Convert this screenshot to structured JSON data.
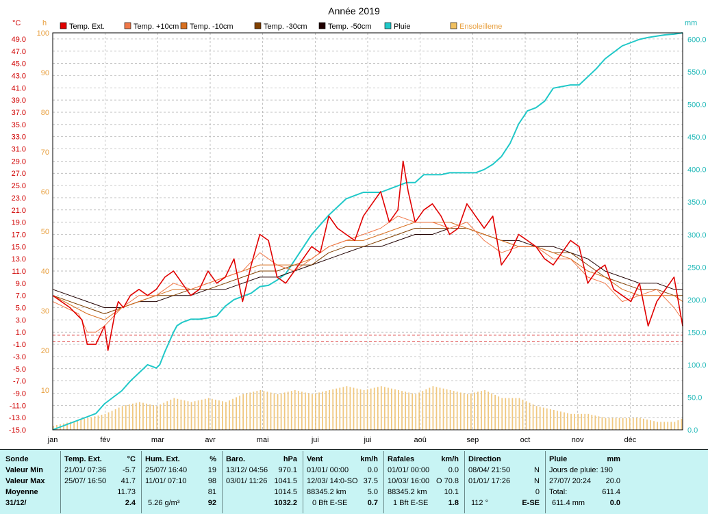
{
  "chart_data": {
    "type": "line",
    "title": "Année 2019",
    "x_months": [
      "jan",
      "fév",
      "mar",
      "avr",
      "mai",
      "jui",
      "jui",
      "aoû",
      "sep",
      "oct",
      "nov",
      "déc"
    ],
    "x_range_days": [
      0,
      365
    ],
    "axes": {
      "temp": {
        "unit": "°C",
        "min": -15,
        "max": 50,
        "ticks": [
          "49.0",
          "47.0",
          "45.0",
          "43.0",
          "41.0",
          "39.0",
          "37.0",
          "35.0",
          "33.0",
          "31.0",
          "29.0",
          "27.0",
          "25.0",
          "23.0",
          "21.0",
          "19.0",
          "17.0",
          "15.0",
          "13.0",
          "11.0",
          "9.0",
          "7.0",
          "5.0",
          "3.0",
          "1.0",
          "-1.0",
          "-3.0",
          "-5.0",
          "-7.0",
          "-9.0",
          "-11.0",
          "-13.0",
          "-15.0"
        ]
      },
      "sun": {
        "unit": "h",
        "min": 0,
        "max": 100,
        "ticks": [
          "100",
          "90",
          "80",
          "70",
          "60",
          "50",
          "40",
          "30",
          "20",
          "10"
        ]
      },
      "rain": {
        "unit": "mm",
        "min": 0,
        "max": 610,
        "ticks": [
          "600.0",
          "550.0",
          "500.0",
          "450.0",
          "400.0",
          "350.0",
          "300.0",
          "250.0",
          "200.0",
          "150.0",
          "100.0",
          "50.0",
          "0.0"
        ]
      }
    },
    "legend": [
      {
        "name": "Temp. Ext.",
        "color": "#e00000"
      },
      {
        "name": "Temp. +10cm",
        "color": "#f07848"
      },
      {
        "name": "Temp. -10cm",
        "color": "#d87020"
      },
      {
        "name": "Temp. -30cm",
        "color": "#804000"
      },
      {
        "name": "Temp. -50cm",
        "color": "#200000"
      },
      {
        "name": "Pluie",
        "color": "#20c8c8"
      },
      {
        "name": "Ensoleilleme",
        "color": "#f0c060"
      }
    ],
    "reference_lines": [
      -0.5,
      0.5
    ],
    "series": [
      {
        "name": "Temp. Ext.",
        "x": [
          0,
          10,
          17,
          20,
          25,
          30,
          32,
          36,
          38,
          41,
          45,
          50,
          55,
          60,
          65,
          70,
          75,
          80,
          85,
          90,
          95,
          100,
          105,
          110,
          115,
          120,
          125,
          130,
          135,
          140,
          145,
          150,
          155,
          160,
          165,
          170,
          175,
          180,
          185,
          190,
          195,
          200,
          203,
          206,
          210,
          215,
          220,
          225,
          230,
          235,
          240,
          245,
          250,
          255,
          260,
          265,
          270,
          275,
          280,
          285,
          290,
          295,
          300,
          305,
          310,
          315,
          320,
          325,
          330,
          335,
          340,
          345,
          350,
          355,
          360,
          365
        ],
        "y": [
          7,
          5,
          3,
          -1,
          -1,
          2,
          -2,
          4,
          6,
          5,
          7,
          8,
          7,
          8,
          10,
          11,
          9,
          7,
          8,
          11,
          9,
          10,
          13,
          6,
          12,
          17,
          16,
          10,
          9,
          11,
          13,
          15,
          14,
          20,
          18,
          17,
          16,
          20,
          22,
          24,
          19,
          21,
          29,
          24,
          19,
          21,
          22,
          20,
          17,
          18,
          22,
          20,
          18,
          20,
          12,
          14,
          17,
          16,
          15,
          13,
          12,
          14,
          16,
          15,
          9,
          11,
          12,
          8,
          7,
          6,
          9,
          2,
          6,
          8,
          10,
          2
        ]
      },
      {
        "name": "Temp. +10cm",
        "x": [
          0,
          15,
          20,
          25,
          30,
          40,
          50,
          60,
          70,
          80,
          90,
          100,
          110,
          120,
          130,
          140,
          150,
          160,
          170,
          180,
          190,
          200,
          210,
          220,
          230,
          240,
          250,
          260,
          270,
          280,
          290,
          300,
          310,
          320,
          330,
          340,
          350,
          360,
          365
        ],
        "y": [
          6,
          4,
          1,
          1,
          2,
          5,
          7,
          7,
          9,
          8,
          9,
          10,
          11,
          14,
          12,
          11,
          13,
          15,
          16,
          17,
          18,
          20,
          19,
          19,
          18,
          19,
          16,
          14,
          15,
          15,
          13,
          13,
          10,
          9,
          6,
          7,
          8,
          5,
          3
        ]
      },
      {
        "name": "Temp. -10cm",
        "x": [
          0,
          20,
          30,
          40,
          50,
          60,
          70,
          80,
          90,
          100,
          110,
          120,
          130,
          140,
          150,
          160,
          170,
          180,
          190,
          200,
          210,
          220,
          230,
          240,
          250,
          260,
          270,
          280,
          290,
          300,
          310,
          320,
          330,
          340,
          350,
          360,
          365
        ],
        "y": [
          7,
          4,
          3,
          5,
          6,
          7,
          8,
          8,
          9,
          10,
          11,
          12,
          12,
          12,
          13,
          15,
          16,
          16,
          17,
          18,
          19,
          19,
          19,
          18,
          17,
          16,
          15,
          15,
          14,
          13,
          11,
          10,
          8,
          7,
          7,
          7,
          6
        ]
      },
      {
        "name": "Temp. -30cm",
        "x": [
          0,
          20,
          30,
          40,
          50,
          60,
          70,
          80,
          90,
          100,
          110,
          120,
          130,
          140,
          150,
          160,
          170,
          180,
          190,
          200,
          210,
          220,
          230,
          240,
          250,
          260,
          270,
          280,
          290,
          300,
          310,
          320,
          330,
          340,
          350,
          360,
          365
        ],
        "y": [
          7,
          5,
          4,
          5,
          6,
          7,
          7,
          8,
          8,
          9,
          10,
          11,
          11,
          12,
          12,
          14,
          15,
          15,
          16,
          17,
          18,
          18,
          18,
          18,
          17,
          16,
          15,
          15,
          14,
          14,
          12,
          10,
          9,
          8,
          8,
          7,
          7
        ]
      },
      {
        "name": "Temp. -50cm",
        "x": [
          0,
          20,
          30,
          40,
          50,
          60,
          70,
          80,
          90,
          100,
          110,
          120,
          130,
          140,
          150,
          160,
          170,
          180,
          190,
          200,
          210,
          220,
          230,
          240,
          250,
          260,
          270,
          280,
          290,
          300,
          310,
          320,
          330,
          340,
          350,
          360,
          365
        ],
        "y": [
          8,
          6,
          5,
          5,
          6,
          6,
          7,
          7,
          8,
          8,
          9,
          10,
          10,
          11,
          12,
          13,
          14,
          15,
          15,
          16,
          17,
          17,
          18,
          18,
          17,
          16,
          16,
          15,
          15,
          14,
          13,
          11,
          10,
          9,
          9,
          8,
          8
        ]
      },
      {
        "name": "Pluie",
        "x": [
          0,
          10,
          20,
          25,
          30,
          35,
          40,
          45,
          55,
          60,
          62,
          65,
          70,
          72,
          75,
          80,
          85,
          90,
          95,
          100,
          105,
          110,
          115,
          120,
          125,
          130,
          135,
          140,
          145,
          150,
          160,
          170,
          175,
          180,
          190,
          205,
          210,
          215,
          225,
          230,
          245,
          250,
          255,
          260,
          265,
          270,
          275,
          280,
          285,
          290,
          300,
          305,
          315,
          320,
          330,
          340,
          345,
          350,
          355,
          360,
          365
        ],
        "y": [
          0,
          10,
          20,
          25,
          40,
          50,
          60,
          75,
          100,
          95,
          100,
          120,
          150,
          160,
          165,
          170,
          170,
          172,
          175,
          190,
          200,
          205,
          210,
          220,
          222,
          230,
          240,
          260,
          280,
          300,
          330,
          355,
          360,
          365,
          365,
          380,
          380,
          392,
          392,
          395,
          395,
          400,
          408,
          420,
          440,
          470,
          490,
          495,
          505,
          525,
          530,
          530,
          555,
          570,
          590,
          600,
          603,
          605,
          607,
          608,
          610
        ]
      },
      {
        "name": "Ensoleilleme",
        "x": [
          0,
          10,
          20,
          30,
          40,
          50,
          60,
          70,
          80,
          90,
          100,
          110,
          120,
          130,
          140,
          150,
          160,
          170,
          180,
          190,
          200,
          210,
          220,
          230,
          240,
          250,
          260,
          270,
          280,
          290,
          300,
          310,
          320,
          330,
          340,
          350,
          360,
          365
        ],
        "y": [
          1,
          2,
          3,
          4,
          6,
          7,
          6,
          8,
          7,
          8,
          7,
          9,
          10,
          9,
          10,
          9,
          10,
          11,
          10,
          11,
          10,
          9,
          11,
          10,
          9,
          10,
          8,
          8,
          6,
          5,
          4,
          4,
          3,
          3,
          3,
          2,
          2,
          3
        ]
      }
    ]
  },
  "panel": {
    "col1": {
      "header": "Sonde",
      "min": "Valeur Min",
      "max": "Valeur Max",
      "moy": "Moyenne",
      "date": "31/12/"
    },
    "col2": {
      "header": "Temp. Ext.",
      "unit": "°C",
      "min_date": "21/01/ 07:36",
      "min_val": "-5.7",
      "max_date": "25/07/ 16:50",
      "max_val": "41.7",
      "moy": "11.73",
      "cur": "2.4"
    },
    "col3": {
      "header": "Hum. Ext.",
      "unit": "%",
      "min_date": "25/07/ 16:40",
      "min_val": "19",
      "max_date": "11/01/ 07:10",
      "max_val": "98",
      "moy": "81",
      "abs": "5.26 g/m³",
      "cur": "92"
    },
    "col4": {
      "header": "Baro.",
      "unit": "hPa",
      "min_date": "13/12/ 04:56",
      "min_val": "970.1",
      "max_date": "03/01/ 11:26",
      "max_val": "1041.5",
      "moy": "1014.5",
      "cur": "1032.2"
    },
    "col5": {
      "header": "Vent",
      "unit": "km/h",
      "min_date": "01/01/ 00:00",
      "min_val": "0.0",
      "max_date": "12/03/ 14:0-SO",
      "max_val": "37.5",
      "dist": "88345.2 km",
      "moy": "5.0",
      "bft": "0 Bft E-SE",
      "cur": "0.7"
    },
    "col6": {
      "header": "Rafales",
      "unit": "km/h",
      "min_date": "01/01/ 00:00",
      "min_val": "0.0",
      "max_date": "10/03/ 16:00",
      "max_val": "O 70.8",
      "dist": "88345.2 km",
      "moy": "10.1",
      "bft": "1 Bft E-SE",
      "cur": "1.8"
    },
    "col7": {
      "header": "Direction",
      "min_date": "08/04/ 21:50",
      "min_val": "N",
      "max_date": "01/01/ 17:26",
      "max_val": "N",
      "moy": "0",
      "deg": "112 °",
      "cur": "E-SE"
    },
    "col8": {
      "header": "Pluie",
      "unit": "mm",
      "days_label": "Jours de pluie: 190",
      "max_date": "27/07/ 20:24",
      "max_val": "20.0",
      "total_label": "Total:",
      "total": "611.4",
      "year": "611.4 mm",
      "cur": "0.0"
    }
  }
}
